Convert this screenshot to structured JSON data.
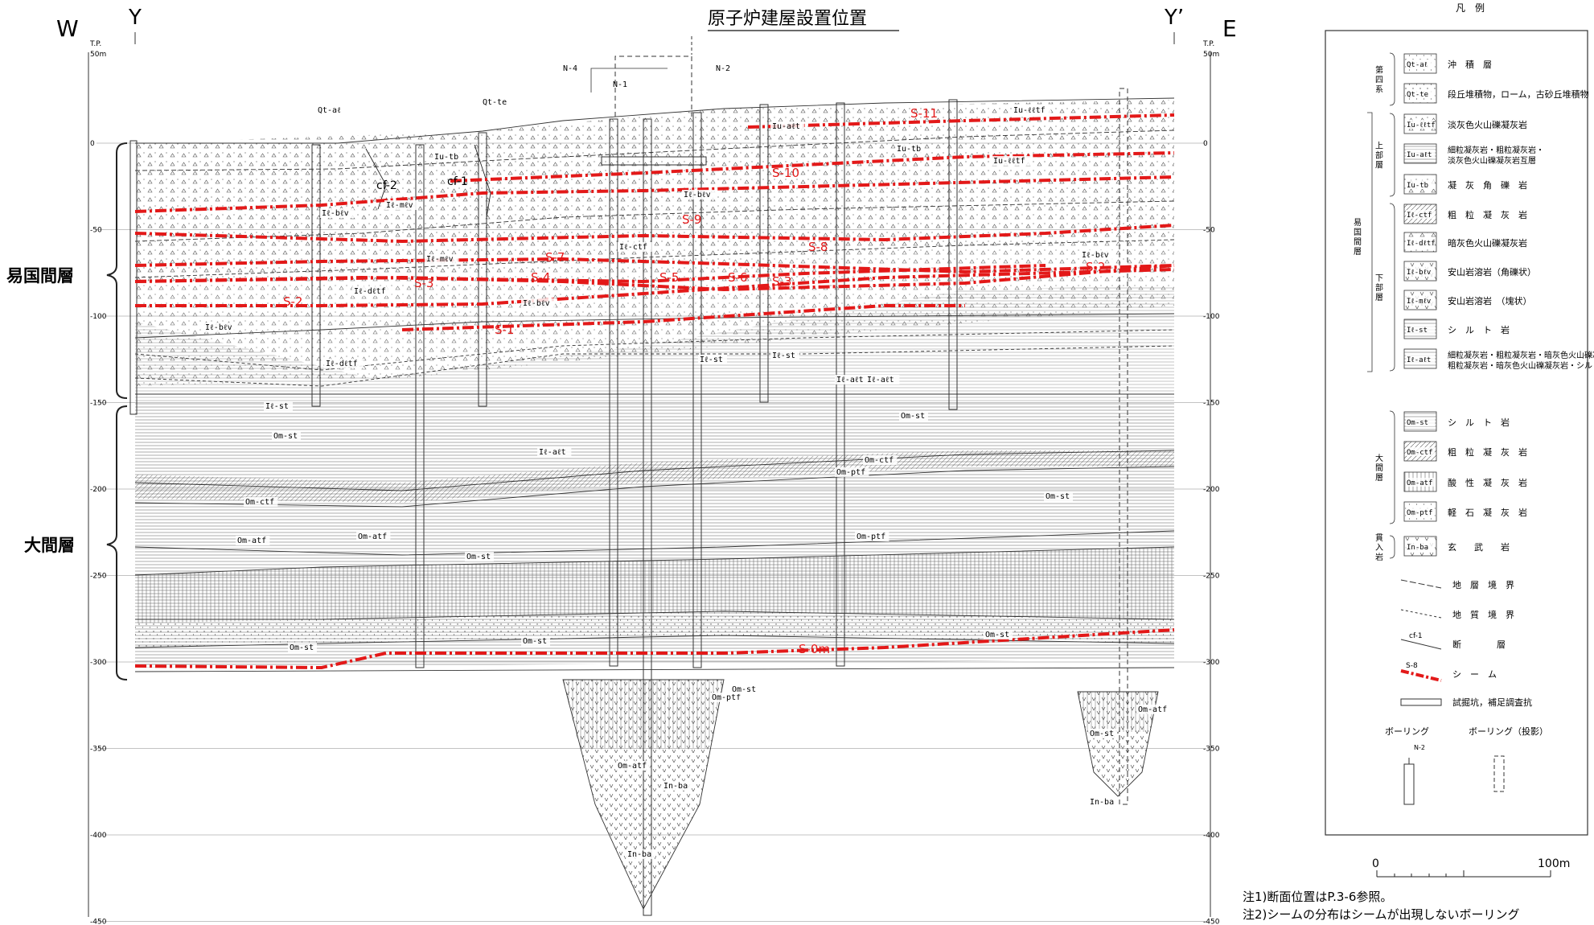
{
  "title": "原子炉建屋設置位置",
  "direction": {
    "west": "W",
    "east": "E"
  },
  "section": {
    "start": "Y",
    "end": "Y’"
  },
  "axis": {
    "unit_label": "T.P.",
    "top_label": "50m",
    "ticks": [
      "0",
      "-50",
      "-100",
      "-150",
      "-200",
      "-250",
      "-300",
      "-350",
      "-400",
      "-450"
    ]
  },
  "formations": [
    {
      "name": "易国間層"
    },
    {
      "name": "大間層"
    }
  ],
  "boreholes": [
    "N-4",
    "N-1",
    "N-2"
  ],
  "seams": [
    "S-11",
    "S-10",
    "S-9",
    "S-8",
    "S-7",
    "S-2",
    "S-4",
    "S-5",
    "S-6",
    "S-3",
    "S-3",
    "S-2",
    "S-1",
    "S-0m"
  ],
  "faults": [
    "cf-2",
    "cf-1"
  ],
  "unit_labels": [
    "Qt-aℓ",
    "Qt-te",
    "Iu-ℓℓtf",
    "Iu-tb",
    "Iu-aℓt",
    "Iu-tb",
    "Iu-ℓℓtf",
    "Iℓ-bℓv",
    "Iℓ-mℓv",
    "Iℓ-ctf",
    "Iℓ-bℓv",
    "Iℓ-mℓv",
    "Iℓ-dℓtf",
    "Iℓ-bℓv",
    "Iℓ-bℓv",
    "Iℓ-dℓtf",
    "Iℓ-aℓt",
    "Iℓ-bℓv",
    "Iℓ-aℓt",
    "Iℓ-st",
    "Iℓ-st",
    "Iℓ-aℓt",
    "Iℓ-st",
    "Om-st",
    "Om-st",
    "Om-ctf",
    "Om-ctf",
    "Om-st",
    "Om-atf",
    "Om-st",
    "Om-ptf",
    "Om-atf",
    "Om-ptf",
    "Om-st",
    "Om-st",
    "Om-st",
    "Om-ptf",
    "Om-st",
    "Om-atf",
    "In-ba",
    "In-ba",
    "Om-st",
    "Om-atf",
    "In-ba"
  ],
  "legend": {
    "title": "凡　例",
    "groups": [
      {
        "name": "第四系",
        "items": [
          {
            "code": "Qt-aℓ",
            "desc": "沖　積　層"
          },
          {
            "code": "Qt-te",
            "desc": "段丘堆積物，ローム，古砂丘堆積物"
          }
        ]
      },
      {
        "name": "上部層",
        "items": [
          {
            "code": "Iu-ℓℓtf",
            "desc": "淡灰色火山礫凝灰岩"
          },
          {
            "code": "Iu-aℓt",
            "desc": "細粒凝灰岩・粗粒凝灰岩・淡灰色火山礫凝灰岩互層"
          },
          {
            "code": "Iu-tb",
            "desc": "凝　灰　角　礫　岩"
          }
        ]
      },
      {
        "name": "下部層",
        "items": [
          {
            "code": "Iℓ-ctf",
            "desc": "粗　粒　凝　灰　岩"
          },
          {
            "code": "Iℓ-dℓtf",
            "desc": "暗灰色火山礫凝灰岩"
          },
          {
            "code": "Iℓ-bℓv",
            "desc": "安山岩溶岩（角礫状）"
          },
          {
            "code": "Iℓ-mℓv",
            "desc": "安山岩溶岩　（塊状）"
          },
          {
            "code": "Iℓ-st",
            "desc": "シ　ル　ト　岩"
          },
          {
            "code": "Iℓ-aℓt",
            "desc": "細粒凝灰岩・粗粒凝灰岩・暗灰色火山礫凝灰岩互層 粗粒凝灰岩・暗灰色火山礫凝灰岩・シルト岩互層"
          }
        ]
      },
      {
        "name": "大間層",
        "items": [
          {
            "code": "Om-st",
            "desc": "シ　ル　ト　岩"
          },
          {
            "code": "Om-ctf",
            "desc": "粗　粒　凝　灰　岩"
          },
          {
            "code": "Om-atf",
            "desc": "酸　性　凝　灰　岩"
          },
          {
            "code": "Om-ptf",
            "desc": "軽　石　凝　灰　岩"
          }
        ]
      },
      {
        "name": "貫入岩",
        "items": [
          {
            "code": "In-ba",
            "desc": "玄　　武　　岩"
          }
        ]
      }
    ],
    "outer_group": "易国間層",
    "symbols": [
      {
        "desc": "地　層　境　界"
      },
      {
        "desc": "地　質　境　界"
      },
      {
        "sample": "cf-1",
        "desc": "断　　　　層"
      },
      {
        "sample": "S-8",
        "desc": "シ　ー　ム"
      },
      {
        "desc": "試掘坑，補足調査抗"
      }
    ],
    "boring": {
      "label": "ボーリング",
      "sample": "N-2"
    },
    "boring_projected": {
      "label": "ボーリング（投影）"
    }
  },
  "scale": {
    "min": "0",
    "max": "100m"
  },
  "notes": [
    "注1)断面位置はP.3-6参照。",
    "注2)シームの分布はシームが出現しないボーリング"
  ],
  "colors": {
    "seam": "#e31919",
    "line": "#333333",
    "grid": "#888888"
  }
}
